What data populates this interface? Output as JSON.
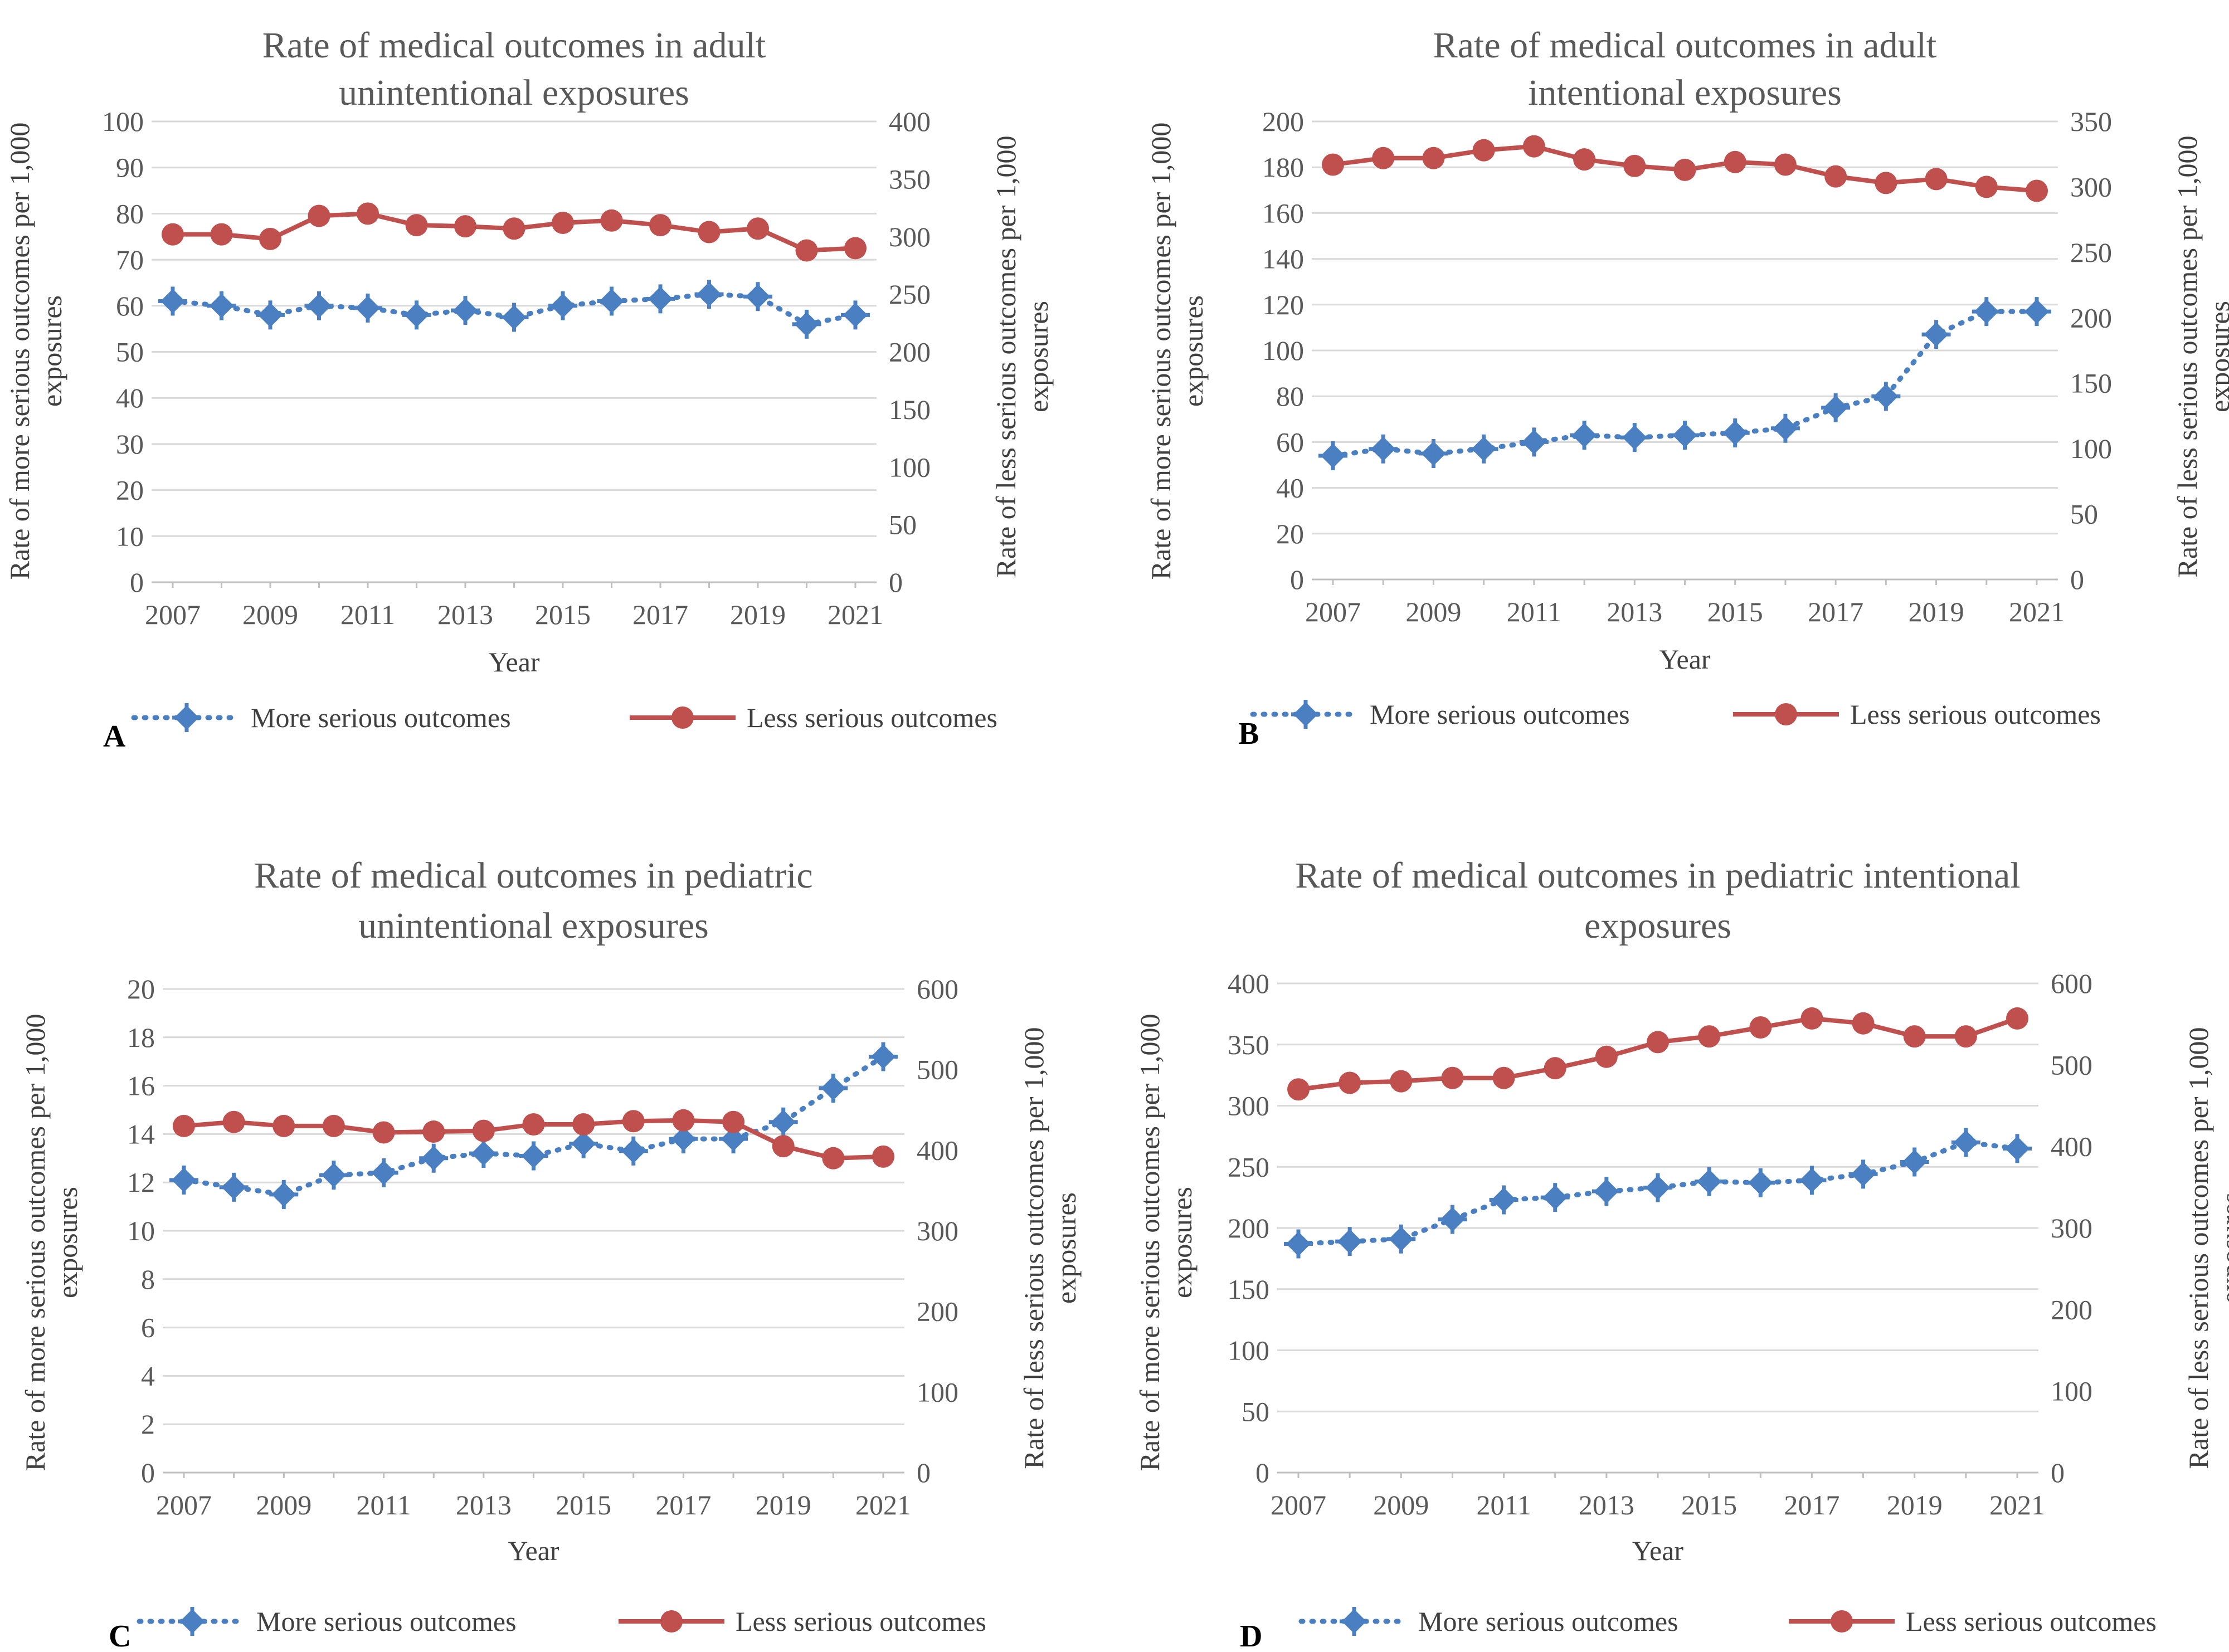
{
  "colors": {
    "more": "#4a7fc1",
    "less": "#c0504d",
    "grid": "#d9d9d9",
    "text": "#595959"
  },
  "legend": {
    "more": "More serious outcomes",
    "less": "Less serious outcomes"
  },
  "chart_data": [
    {
      "type": "line",
      "panel": "A",
      "title": [
        "Rate of medical outcomes in adult",
        "unintentional exposures"
      ],
      "xlabel": "Year",
      "ylabel_left": [
        "Rate of more serious  outcomes per 1,000",
        "exposures"
      ],
      "ylabel_right": [
        "Rate of less serious outcomes per 1,000",
        "exposures"
      ],
      "x": [
        2007,
        2008,
        2009,
        2010,
        2011,
        2012,
        2013,
        2014,
        2015,
        2016,
        2017,
        2018,
        2019,
        2020,
        2021
      ],
      "x_tick_labels": [
        "2007",
        "2009",
        "2011",
        "2013",
        "2015",
        "2017",
        "2019",
        "2021"
      ],
      "ylim_left": [
        0,
        100
      ],
      "yticks_left": [
        0,
        10,
        20,
        30,
        40,
        50,
        60,
        70,
        80,
        90,
        100
      ],
      "ylim_right": [
        0,
        400
      ],
      "yticks_right": [
        0,
        50,
        100,
        150,
        200,
        250,
        300,
        350,
        400
      ],
      "grid": true,
      "series": [
        {
          "name": "More serious outcomes",
          "axis": "left",
          "style": "dotted-diamond",
          "values": [
            61,
            60,
            58,
            60,
            59.5,
            58,
            59,
            57.5,
            60,
            61,
            61.5,
            62.5,
            62,
            56,
            58
          ]
        },
        {
          "name": "Less serious outcomes",
          "axis": "right",
          "style": "solid-circle",
          "values": [
            302,
            302,
            298,
            318,
            320,
            310,
            309,
            307,
            312,
            314,
            310,
            304,
            307,
            288,
            290
          ]
        }
      ]
    },
    {
      "type": "line",
      "panel": "B",
      "title": [
        "Rate of medical outcomes in adult",
        "intentional exposures"
      ],
      "xlabel": "Year",
      "ylabel_left": [
        "Rate of more serious  outcomes per 1,000",
        "exposures"
      ],
      "ylabel_right": [
        "Rate of less serious outcomes per 1,000",
        "exposures"
      ],
      "x": [
        2007,
        2008,
        2009,
        2010,
        2011,
        2012,
        2013,
        2014,
        2015,
        2016,
        2017,
        2018,
        2019,
        2020,
        2021
      ],
      "x_tick_labels": [
        "2007",
        "2009",
        "2011",
        "2013",
        "2015",
        "2017",
        "2019",
        "2021"
      ],
      "ylim_left": [
        0,
        200
      ],
      "yticks_left": [
        0,
        20,
        40,
        60,
        80,
        100,
        120,
        140,
        160,
        180,
        200
      ],
      "ylim_right": [
        0,
        350
      ],
      "yticks_right": [
        0,
        50,
        100,
        150,
        200,
        250,
        300,
        350
      ],
      "grid": true,
      "series": [
        {
          "name": "More serious outcomes",
          "axis": "left",
          "style": "dotted-diamond",
          "values": [
            54,
            57,
            55,
            57,
            60,
            63,
            62,
            63,
            64,
            66,
            75,
            80,
            107,
            117,
            117
          ]
        },
        {
          "name": "Less serious outcomes",
          "axis": "right",
          "style": "solid-circle",
          "values": [
            317,
            322,
            322,
            328,
            331,
            321,
            316,
            313,
            319,
            317,
            308,
            303,
            306,
            300,
            297
          ]
        }
      ]
    },
    {
      "type": "line",
      "panel": "C",
      "title": [
        "Rate of medical outcomes in pediatric",
        "unintentional exposures"
      ],
      "xlabel": "Year",
      "ylabel_left": [
        "Rate of more serious  outcomes per 1,000",
        "exposures"
      ],
      "ylabel_right": [
        "Rate of less serious outcomes per 1,000",
        "exposures"
      ],
      "x": [
        2007,
        2008,
        2009,
        2010,
        2011,
        2012,
        2013,
        2014,
        2015,
        2016,
        2017,
        2018,
        2019,
        2020,
        2021
      ],
      "x_tick_labels": [
        "2007",
        "2009",
        "2011",
        "2013",
        "2015",
        "2017",
        "2019",
        "2021"
      ],
      "ylim_left": [
        0,
        20
      ],
      "yticks_left": [
        0,
        2,
        4,
        6,
        8,
        10,
        12,
        14,
        16,
        18,
        20
      ],
      "ylim_right": [
        0,
        600
      ],
      "yticks_right": [
        0,
        100,
        200,
        300,
        400,
        500,
        600
      ],
      "grid": true,
      "series": [
        {
          "name": "More serious outcomes",
          "axis": "left",
          "style": "dotted-diamond",
          "values": [
            12.1,
            11.8,
            11.5,
            12.3,
            12.4,
            13.0,
            13.2,
            13.1,
            13.6,
            13.3,
            13.8,
            13.8,
            14.5,
            15.9,
            17.2
          ]
        },
        {
          "name": "Less serious outcomes",
          "axis": "right",
          "style": "solid-circle",
          "values": [
            430,
            435,
            430,
            430,
            422,
            423,
            424,
            432,
            432,
            436,
            437,
            435,
            405,
            390,
            392
          ]
        }
      ]
    },
    {
      "type": "line",
      "panel": "D",
      "title": [
        "Rate of medical outcomes in pediatric  intentional",
        "exposures"
      ],
      "xlabel": "Year",
      "ylabel_left": [
        "Rate of more serious  outcomes per 1,000",
        "exposures"
      ],
      "ylabel_right": [
        "Rate of less serious outcomes per 1,000",
        "exposures"
      ],
      "x": [
        2007,
        2008,
        2009,
        2010,
        2011,
        2012,
        2013,
        2014,
        2015,
        2016,
        2017,
        2018,
        2019,
        2020,
        2021
      ],
      "x_tick_labels": [
        "2007",
        "2009",
        "2011",
        "2013",
        "2015",
        "2017",
        "2019",
        "2021"
      ],
      "ylim_left": [
        0,
        400
      ],
      "yticks_left": [
        0,
        50,
        100,
        150,
        200,
        250,
        300,
        350,
        400
      ],
      "ylim_right": [
        0,
        600
      ],
      "yticks_right": [
        0,
        100,
        200,
        300,
        400,
        500,
        600
      ],
      "grid": true,
      "series": [
        {
          "name": "More serious outcomes",
          "axis": "left",
          "style": "dotted-diamond",
          "values": [
            187,
            189,
            191,
            207,
            223,
            225,
            230,
            233,
            238,
            237,
            239,
            244,
            254,
            270,
            265
          ]
        },
        {
          "name": "Less serious outcomes",
          "axis": "right",
          "style": "solid-circle",
          "values": [
            470,
            478,
            480,
            484,
            484,
            496,
            510,
            528,
            535,
            546,
            557,
            551,
            535,
            535,
            557
          ]
        }
      ]
    }
  ]
}
